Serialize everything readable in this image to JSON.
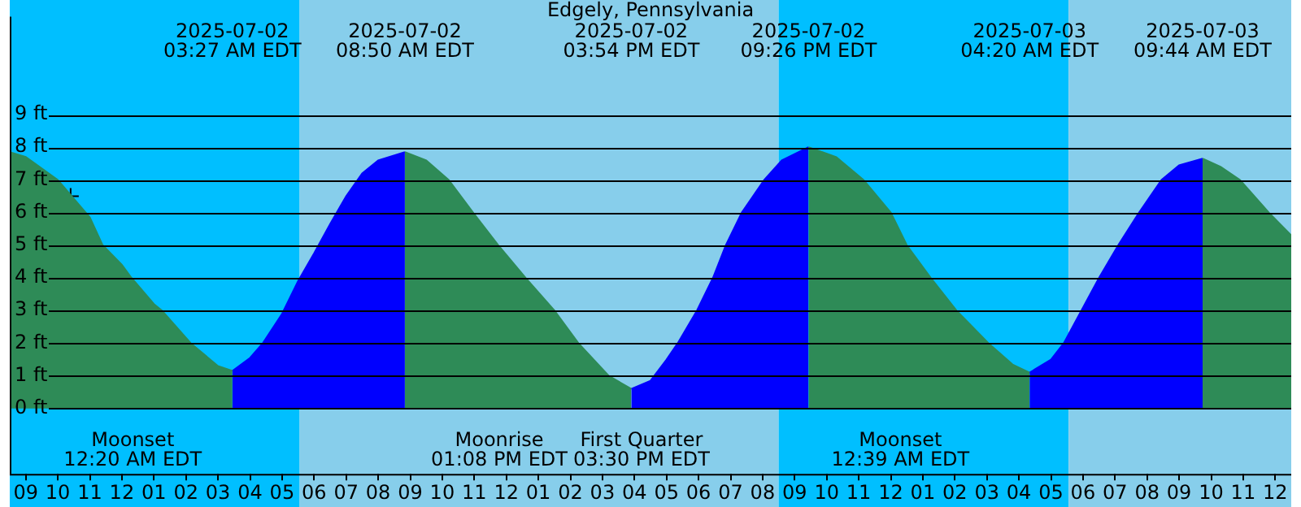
{
  "chart_data": {
    "type": "area",
    "title": "Edgely, Pennsylvania",
    "series": [
      {
        "color": "#2e8b57",
        "x": [
          "2025-07-01T20:30",
          "2025-07-01T21:00",
          "2025-07-01T22:00",
          "2025-07-01T23:00",
          "2025-07-01T23:24",
          "2025-07-02T00:00",
          "2025-07-02T00:18",
          "2025-07-02T01:00",
          "2025-07-02T01:15",
          "2025-07-02T02:09",
          "2025-07-02T03:00",
          "2025-07-02T03:27",
          "2025-07-02T06:00",
          "2025-07-02T08:50",
          "2025-07-02T09:30",
          "2025-07-02T10:12",
          "2025-07-02T11:00",
          "2025-07-02T11:45",
          "2025-07-02T12:36",
          "2025-07-02T13:30",
          "2025-07-02T14:15",
          "2025-07-02T15:12",
          "2025-07-02T15:54",
          "2025-07-02T18:00",
          "2025-07-02T21:26",
          "2025-07-02T22:18",
          "2025-07-02T23:09",
          "2025-07-03T00:00",
          "2025-07-03T00:30",
          "2025-07-03T01:15",
          "2025-07-03T02:03",
          "2025-07-03T03:03",
          "2025-07-03T03:48",
          "2025-07-03T04:20",
          "2025-07-03T07:00",
          "2025-07-03T09:44",
          "2025-07-03T10:18",
          "2025-07-03T10:54",
          "2025-07-03T11:48",
          "2025-07-03T12:30"
        ],
        "values": [
          7.85,
          7.7,
          7.0,
          5.85,
          5,
          4.4,
          4,
          3.2,
          3,
          2,
          1.3,
          1.15,
          null,
          7.85,
          7.6,
          7.0,
          5.95,
          5,
          4,
          3,
          2,
          1,
          0.6,
          null,
          8.0,
          7.7,
          7,
          6,
          5,
          4,
          3,
          2,
          1.35,
          1.1,
          null,
          7.65,
          7.4,
          7,
          6,
          5.3
        ]
      },
      {
        "color": "#0000ff",
        "x": [
          "2025-07-02T03:27",
          "2025-07-02T04:00",
          "2025-07-02T04:24",
          "2025-07-02T05:00",
          "2025-07-02T05:30",
          "2025-07-02T06:00",
          "2025-07-02T06:30",
          "2025-07-02T07:00",
          "2025-07-02T07:30",
          "2025-07-02T08:00",
          "2025-07-02T08:50",
          "2025-07-02T12:00",
          "2025-07-02T15:54",
          "2025-07-02T16:30",
          "2025-07-02T17:00",
          "2025-07-02T17:21",
          "2025-07-02T17:57",
          "2025-07-02T18:27",
          "2025-07-02T18:51",
          "2025-07-02T19:21",
          "2025-07-02T20:03",
          "2025-07-02T20:36",
          "2025-07-02T21:26",
          "2025-07-03T01:00",
          "2025-07-03T04:20",
          "2025-07-03T05:00",
          "2025-07-03T05:24",
          "2025-07-03T05:57",
          "2025-07-03T06:30",
          "2025-07-03T07:06",
          "2025-07-03T07:45",
          "2025-07-03T08:27",
          "2025-07-03T09:00",
          "2025-07-03T09:44"
        ],
        "values": [
          1.15,
          1.55,
          2,
          2.9,
          3.9,
          4.75,
          5.65,
          6.5,
          7.2,
          7.6,
          7.85,
          null,
          0.6,
          0.85,
          1.5,
          2,
          3,
          4,
          5,
          6,
          7,
          7.6,
          8.0,
          null,
          1.1,
          1.5,
          2,
          3,
          4,
          5,
          6,
          7,
          7.45,
          7.65
        ]
      },
      {
        "type": "scatter",
        "color": "#000000",
        "marker": "cross",
        "x": [
          "2025-07-01T22:24"
        ],
        "values": [
          6.5
        ]
      }
    ],
    "xlim": [
      "2025-07-01T20:30",
      "2025-07-03T12:30"
    ],
    "xticks": [
      {
        "value": "2025-07-01T21:00",
        "label": "09"
      },
      {
        "value": "2025-07-01T22:00",
        "label": "10"
      },
      {
        "value": "2025-07-01T23:00",
        "label": "11"
      },
      {
        "value": "2025-07-02T00:00",
        "label": "12"
      },
      {
        "value": "2025-07-02T01:00",
        "label": "01"
      },
      {
        "value": "2025-07-02T02:00",
        "label": "02"
      },
      {
        "value": "2025-07-02T03:00",
        "label": "03"
      },
      {
        "value": "2025-07-02T04:00",
        "label": "04"
      },
      {
        "value": "2025-07-02T05:00",
        "label": "05"
      },
      {
        "value": "2025-07-02T06:00",
        "label": "06"
      },
      {
        "value": "2025-07-02T07:00",
        "label": "07"
      },
      {
        "value": "2025-07-02T08:00",
        "label": "08"
      },
      {
        "value": "2025-07-02T09:00",
        "label": "09"
      },
      {
        "value": "2025-07-02T10:00",
        "label": "10"
      },
      {
        "value": "2025-07-02T11:00",
        "label": "11"
      },
      {
        "value": "2025-07-02T12:00",
        "label": "12"
      },
      {
        "value": "2025-07-02T13:00",
        "label": "01"
      },
      {
        "value": "2025-07-02T14:00",
        "label": "02"
      },
      {
        "value": "2025-07-02T15:00",
        "label": "03"
      },
      {
        "value": "2025-07-02T16:00",
        "label": "04"
      },
      {
        "value": "2025-07-02T17:00",
        "label": "05"
      },
      {
        "value": "2025-07-02T18:00",
        "label": "06"
      },
      {
        "value": "2025-07-02T19:00",
        "label": "07"
      },
      {
        "value": "2025-07-02T20:00",
        "label": "08"
      },
      {
        "value": "2025-07-02T21:00",
        "label": "09"
      },
      {
        "value": "2025-07-02T22:00",
        "label": "10"
      },
      {
        "value": "2025-07-02T23:00",
        "label": "11"
      },
      {
        "value": "2025-07-03T00:00",
        "label": "12"
      },
      {
        "value": "2025-07-03T01:00",
        "label": "01"
      },
      {
        "value": "2025-07-03T02:00",
        "label": "02"
      },
      {
        "value": "2025-07-03T03:00",
        "label": "03"
      },
      {
        "value": "2025-07-03T04:00",
        "label": "04"
      },
      {
        "value": "2025-07-03T05:00",
        "label": "05"
      },
      {
        "value": "2025-07-03T06:00",
        "label": "06"
      },
      {
        "value": "2025-07-03T07:00",
        "label": "07"
      },
      {
        "value": "2025-07-03T08:00",
        "label": "08"
      },
      {
        "value": "2025-07-03T09:00",
        "label": "09"
      },
      {
        "value": "2025-07-03T10:00",
        "label": "10"
      },
      {
        "value": "2025-07-03T11:00",
        "label": "11"
      },
      {
        "value": "2025-07-03T12:00",
        "label": "12"
      }
    ],
    "ylim": [
      -2,
      12
    ],
    "yticks": [
      {
        "value": 0,
        "label": "0 ft"
      },
      {
        "value": 1,
        "label": "1 ft"
      },
      {
        "value": 2,
        "label": "2 ft"
      },
      {
        "value": 3,
        "label": "3 ft"
      },
      {
        "value": 4,
        "label": "4 ft"
      },
      {
        "value": 5,
        "label": "5 ft"
      },
      {
        "value": 6,
        "label": "6 ft"
      },
      {
        "value": 7,
        "label": "7 ft"
      },
      {
        "value": 8,
        "label": "8 ft"
      },
      {
        "value": 9,
        "label": "9 ft"
      }
    ],
    "grid": "y",
    "legend": false,
    "bands": [
      {
        "axis": "x",
        "from": "2025-07-01T20:30",
        "to": "2025-07-02T05:33",
        "color": "#00bfff"
      },
      {
        "axis": "x",
        "from": "2025-07-02T05:33",
        "to": "2025-07-02T20:30",
        "color": "#87ceeb"
      },
      {
        "axis": "x",
        "from": "2025-07-02T20:30",
        "to": "2025-07-03T05:33",
        "color": "#00bfff"
      },
      {
        "axis": "x",
        "from": "2025-07-03T05:33",
        "to": "2025-07-03T12:30",
        "color": "#87ceeb"
      }
    ],
    "annotations": [
      "2025-07-02\n03:27 AM EDT",
      "2025-07-02\n08:50 AM EDT",
      "2025-07-02\n03:54 PM EDT",
      "2025-07-02\n09:26 PM EDT",
      "2025-07-03\n04:20 AM EDT",
      "2025-07-03\n09:44 AM EDT",
      "Moonset\n12:20 AM EDT",
      "Moonrise\n01:08 PM EDT",
      "First Quarter\n03:30 PM EDT",
      "Moonset\n12:39 AM EDT"
    ]
  }
}
